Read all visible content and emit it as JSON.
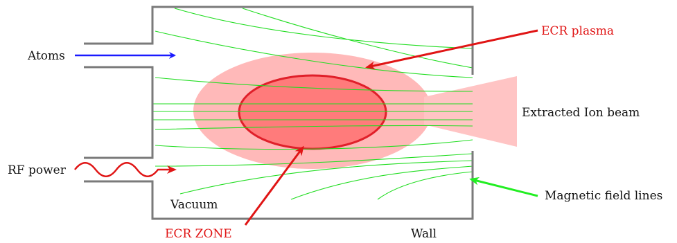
{
  "labels": {
    "atoms": "Atoms",
    "ecr_plasma": "ECR plasma",
    "extracted_ion_beam": "Extracted Ion beam",
    "rf_power": "RF power",
    "magnetic_field_lines": "Magnetic field lines",
    "vacuum": "Vacuum",
    "ecr_zone": "ECR ZONE",
    "wall": "Wall"
  },
  "colors": {
    "wall": "#7a7a7a",
    "field_lines": "#22dd22",
    "plasma": "#ffb9b9",
    "ecr_zone_fill": "#ff7b7b",
    "ecr_zone_stroke": "#e0202a",
    "ion_beam": "#ffc4c4",
    "atoms_arrow": "#1a1aff",
    "red_text": "#e01515",
    "magnetic_arrow": "#22ee22"
  }
}
